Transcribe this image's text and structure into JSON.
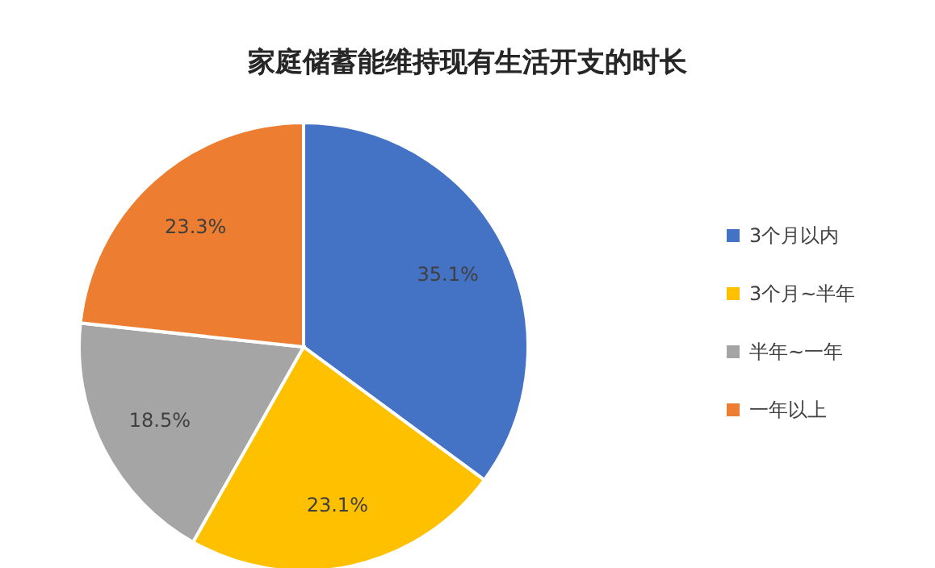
{
  "chart_data": {
    "type": "pie",
    "title": "家庭储蓄能维持现有生活开支的时长",
    "categories": [
      "3个月以内",
      "3个月~半年",
      "半年~一年",
      "一年以上"
    ],
    "values": [
      35.1,
      23.1,
      18.5,
      23.3
    ],
    "colors": [
      "#4472c4",
      "#ffc000",
      "#a5a5a5",
      "#ed7d31"
    ],
    "value_labels": [
      "35.1%",
      "23.1%",
      "18.5%",
      "23.3%"
    ],
    "legend": "right"
  }
}
